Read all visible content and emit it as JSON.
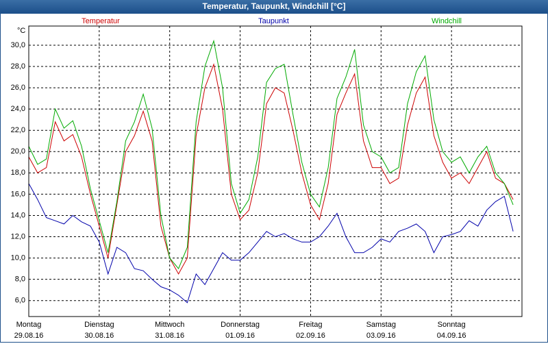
{
  "chart_data": {
    "type": "line",
    "title": "Temperatur, Taupunkt, Windchill [°C]",
    "y_label": "°C",
    "x": [
      0,
      3,
      6,
      9,
      12,
      15,
      18,
      21,
      24,
      27,
      30,
      33,
      36,
      39,
      42,
      45,
      48,
      51,
      54,
      57,
      60,
      63,
      66,
      69,
      72,
      75,
      78,
      81,
      84,
      87,
      90,
      93,
      96,
      99,
      102,
      105,
      108,
      111,
      114,
      117,
      120,
      123,
      126,
      129,
      132,
      135,
      138,
      141,
      144,
      147,
      150,
      153,
      156,
      159,
      162,
      165
    ],
    "xlim": [
      0,
      168
    ],
    "xticks": [
      {
        "value": 0,
        "label": "Montag",
        "date": "29.08.16"
      },
      {
        "value": 24,
        "label": "Dienstag",
        "date": "30.08.16"
      },
      {
        "value": 48,
        "label": "Mittwoch",
        "date": "31.08.16"
      },
      {
        "value": 72,
        "label": "Donnerstag",
        "date": "01.09.16"
      },
      {
        "value": 96,
        "label": "Freitag",
        "date": "02.09.16"
      },
      {
        "value": 120,
        "label": "Samstag",
        "date": "03.09.16"
      },
      {
        "value": 144,
        "label": "Sonntag",
        "date": "04.09.16"
      }
    ],
    "ylim": [
      4.5,
      31.8
    ],
    "yticks": [
      {
        "value": 6,
        "label": "6,0"
      },
      {
        "value": 8,
        "label": "8,0"
      },
      {
        "value": 10,
        "label": "10,0"
      },
      {
        "value": 12,
        "label": "12,0"
      },
      {
        "value": 14,
        "label": "14,0"
      },
      {
        "value": 16,
        "label": "16,0"
      },
      {
        "value": 18,
        "label": "18,0"
      },
      {
        "value": 20,
        "label": "20,0"
      },
      {
        "value": 22,
        "label": "22,0"
      },
      {
        "value": 24,
        "label": "24,0"
      },
      {
        "value": 26,
        "label": "26,0"
      },
      {
        "value": 28,
        "label": "28,0"
      },
      {
        "value": 30,
        "label": "30,0"
      }
    ],
    "grid": true,
    "series": [
      {
        "name": "Temperatur",
        "color": "#cc0000",
        "values": [
          19.5,
          18,
          18.5,
          22.8,
          21,
          21.6,
          19.5,
          16,
          13,
          10,
          15,
          20,
          21.5,
          23.8,
          21,
          13,
          10,
          8.5,
          10,
          21.5,
          26,
          28.2,
          24,
          16,
          13.6,
          14.5,
          18,
          24.5,
          26,
          25.5,
          22,
          18,
          15,
          13.6,
          17,
          23.5,
          25.5,
          27.3,
          21,
          18.5,
          18.5,
          17,
          17.5,
          22.5,
          25.5,
          27,
          21.5,
          19,
          17.5,
          18,
          17,
          18.5,
          20,
          17.5,
          17,
          15.5
        ]
      },
      {
        "name": "Taupunkt",
        "color": "#0000aa",
        "values": [
          17,
          15.5,
          13.8,
          13.5,
          13.2,
          14,
          13.4,
          13,
          11.5,
          8.5,
          11,
          10.5,
          9,
          8.8,
          8,
          7.3,
          7,
          6.5,
          5.8,
          8.5,
          7.5,
          9,
          10.5,
          9.8,
          9.8,
          10.5,
          11.5,
          12.5,
          12,
          12.3,
          11.8,
          11.5,
          11.5,
          12,
          13,
          14.2,
          12,
          10.5,
          10.5,
          11,
          11.8,
          11.5,
          12.5,
          12.8,
          13.2,
          12.5,
          10.5,
          12,
          12.2,
          12.5,
          13.5,
          13,
          14.5,
          15.3,
          15.8,
          12.5
        ]
      },
      {
        "name": "Windchill",
        "color": "#00aa00",
        "values": [
          20.5,
          18.8,
          19.3,
          24,
          22.2,
          22.9,
          20.5,
          16.5,
          13.5,
          10.5,
          15.3,
          21,
          22.8,
          25.4,
          22.2,
          14,
          10,
          9,
          11,
          22.8,
          28,
          30.4,
          26,
          17,
          14.2,
          15.5,
          19.5,
          26.5,
          27.8,
          28.2,
          23.5,
          19,
          16,
          14.8,
          18.5,
          25,
          27,
          29.6,
          22.5,
          20,
          19.5,
          18,
          18.5,
          24.5,
          27.5,
          29,
          23,
          20,
          19,
          19.5,
          18,
          19.5,
          20.5,
          18,
          17,
          15
        ]
      }
    ]
  }
}
